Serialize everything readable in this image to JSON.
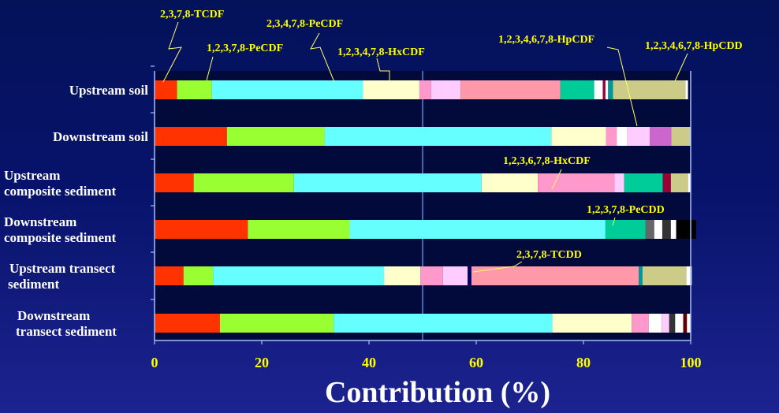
{
  "chart_data": {
    "type": "bar",
    "orientation": "horizontal",
    "stacked": true,
    "xlabel": "Contribution (%)",
    "xlim": [
      0,
      100
    ],
    "xticks": [
      "0",
      "20",
      "40",
      "60",
      "80",
      "100"
    ],
    "categories": [
      [
        "Upstream soil"
      ],
      [
        "Downstream soil"
      ],
      [
        "Upstream",
        "composite sediment"
      ],
      [
        "Downstream",
        "composite sediment"
      ],
      [
        "Upstream transect",
        "sediment"
      ],
      [
        "Downstream",
        "transect sediment"
      ]
    ],
    "rows": [
      [
        [
          "#ff3300",
          4.2
        ],
        [
          "#99ff33",
          6.5
        ],
        [
          "#66ffff",
          28.2
        ],
        [
          "#ffffcc",
          10.5
        ],
        [
          "#ff99cc",
          2.2
        ],
        [
          "#ffccff",
          5.5
        ],
        [
          "#ff99aa",
          18.6
        ],
        [
          "#00cc99",
          6.3
        ],
        [
          "#ffffff",
          1.6
        ],
        [
          "#990033",
          0.5
        ],
        [
          "#ffffff",
          0.5
        ],
        [
          "#009999",
          0.9
        ],
        [
          "#cccc88",
          13.5
        ],
        [
          "#ffffff",
          0.5
        ]
      ],
      [
        [
          "#ff3300",
          13.5
        ],
        [
          "#99ff33",
          18.2
        ],
        [
          "#66ffff",
          42.3
        ],
        [
          "#ffffcc",
          10.2
        ],
        [
          "#ff99cc",
          2.0
        ],
        [
          "#ffffff",
          2.0
        ],
        [
          "#ffccff",
          4.2
        ],
        [
          "#cc66cc",
          4.0
        ],
        [
          "#cccc88",
          3.4
        ],
        [
          "#ffffff",
          0.2
        ]
      ],
      [
        [
          "#ff3300",
          7.3
        ],
        [
          "#99ff33",
          18.7
        ],
        [
          "#66ffff",
          35.0
        ],
        [
          "#ffffcc",
          10.5
        ],
        [
          "#ff99cc",
          14.3
        ],
        [
          "#ffccff",
          1.8
        ],
        [
          "#00cc99",
          7.2
        ],
        [
          "#990033",
          1.5
        ],
        [
          "#cccc88",
          3.2
        ],
        [
          "#ffffff",
          0.5
        ]
      ],
      [
        [
          "#ff3300",
          17.4
        ],
        [
          "#99ff33",
          19.0
        ],
        [
          "#66ffff",
          47.7
        ],
        [
          "#00cc99",
          7.5
        ],
        [
          "#666666",
          1.6
        ],
        [
          "#ffffff",
          1.5
        ],
        [
          "#333333",
          1.6
        ],
        [
          "#ffffff",
          1.0
        ],
        [
          "#000000",
          3.7
        ]
      ],
      [
        [
          "#ff3300",
          5.4
        ],
        [
          "#99ff33",
          5.5
        ],
        [
          "#66ffff",
          31.9
        ],
        [
          "#ffffcc",
          6.8
        ],
        [
          "#ff99cc",
          4.2
        ],
        [
          "#ffccff",
          4.6
        ],
        [
          "#000066",
          0.7
        ],
        [
          "#ff99aa",
          31.2
        ],
        [
          "#009999",
          0.7
        ],
        [
          "#cccc88",
          8.2
        ],
        [
          "#ffffff",
          1.0
        ]
      ],
      [
        [
          "#ff3300",
          12.2
        ],
        [
          "#99ff33",
          21.2
        ],
        [
          "#66ffff",
          40.8
        ],
        [
          "#ffffcc",
          14.8
        ],
        [
          "#ff99cc",
          3.2
        ],
        [
          "#ffffff",
          2.4
        ],
        [
          "#ffccff",
          1.4
        ],
        [
          "#333333",
          1.1
        ],
        [
          "#ffffff",
          1.5
        ],
        [
          "#660000",
          0.7
        ],
        [
          "#ffffff",
          0.7
        ]
      ]
    ],
    "annotations": [
      "2,3,7,8-TCDF",
      "2,3,4,7,8-PeCDF",
      "1,2,3,7,8-PeCDF",
      "1,2,3,4,7,8-HxCDF",
      "1,2,3,4,6,7,8-HpCDF",
      "1,2,3,4,6,7,8-HpCDD",
      "1,2,3,6,7,8-HxCDF",
      "1,2,3,7,8-PeCDD",
      "2,3,7,8-TCDD"
    ]
  }
}
